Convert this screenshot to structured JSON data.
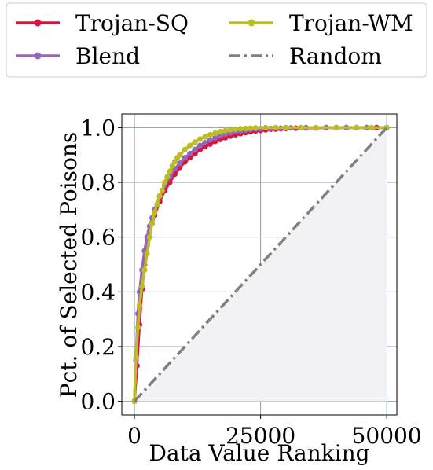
{
  "chart_data": {
    "type": "line",
    "title": "",
    "xlabel": "Data Value Ranking",
    "ylabel": "Pct. of Selected Poisons",
    "xlim": [
      -2500,
      52000
    ],
    "ylim": [
      -0.05,
      1.05
    ],
    "xticks": [
      0,
      25000,
      50000
    ],
    "yticks": [
      0.0,
      0.2,
      0.4,
      0.6,
      0.8,
      1.0
    ],
    "xtick_labels": [
      "0",
      "25000",
      "50000"
    ],
    "ytick_labels": [
      "0.0",
      "0.2",
      "0.4",
      "0.6",
      "0.8",
      "1.0"
    ],
    "grid": true,
    "legend_placement": "top (above plot, 2 columns)",
    "series": [
      {
        "name": "Trojan-SQ",
        "color": "#dc143c",
        "marker": "circle",
        "x": [
          0,
          500,
          1000,
          1500,
          2000,
          2500,
          3000,
          4000,
          5000,
          6000,
          7000,
          8000,
          9000,
          10000,
          11000,
          12000,
          13000,
          14000,
          15000,
          16000,
          17000,
          18000,
          19000,
          20000,
          21000,
          22000,
          23000,
          24000,
          25000,
          26000,
          27000,
          28000,
          29000,
          30000,
          32000,
          34000,
          36000,
          38000,
          40000,
          42000,
          44000,
          46000,
          48000,
          50000
        ],
        "y": [
          0.0,
          0.13,
          0.28,
          0.41,
          0.5,
          0.57,
          0.62,
          0.68,
          0.73,
          0.77,
          0.8,
          0.83,
          0.855,
          0.875,
          0.89,
          0.905,
          0.92,
          0.93,
          0.94,
          0.95,
          0.957,
          0.963,
          0.969,
          0.974,
          0.978,
          0.982,
          0.985,
          0.988,
          0.99,
          0.992,
          0.994,
          0.995,
          0.996,
          0.997,
          0.998,
          0.999,
          0.999,
          1.0,
          1.0,
          1.0,
          1.0,
          1.0,
          1.0,
          1.0
        ]
      },
      {
        "name": "Blend",
        "color": "#9467bd",
        "marker": "circle",
        "x": [
          0,
          300,
          700,
          1000,
          1500,
          2000,
          2500,
          3000,
          3500,
          4000,
          5000,
          6000,
          7000,
          8000,
          9000,
          10000,
          11000,
          12000,
          13000,
          14000,
          15000,
          16000,
          17000,
          18000,
          19000,
          20000,
          21000,
          22000,
          23000,
          24000,
          25000,
          27000,
          29000,
          31000,
          34000,
          38000,
          42000,
          46000,
          50000
        ],
        "y": [
          0.0,
          0.15,
          0.32,
          0.4,
          0.48,
          0.55,
          0.6,
          0.64,
          0.67,
          0.7,
          0.75,
          0.79,
          0.82,
          0.85,
          0.87,
          0.89,
          0.905,
          0.92,
          0.935,
          0.945,
          0.955,
          0.963,
          0.97,
          0.976,
          0.981,
          0.985,
          0.988,
          0.991,
          0.993,
          0.995,
          0.996,
          0.997,
          0.998,
          0.999,
          1.0,
          1.0,
          1.0,
          1.0,
          1.0
        ]
      },
      {
        "name": "Trojan-WM",
        "color": "#bcbd22",
        "marker": "circle",
        "x": [
          0,
          300,
          700,
          1000,
          1500,
          2000,
          2500,
          3000,
          3500,
          4000,
          4500,
          5000,
          5500,
          6000,
          6500,
          7000,
          7500,
          8000,
          8500,
          9000,
          10000,
          11000,
          12000,
          13000,
          14000,
          15000,
          16000,
          17000,
          18000,
          19000,
          20000,
          21000,
          22000,
          23000,
          24000,
          26000,
          28000,
          30000,
          33000,
          36000,
          40000,
          44000,
          47000,
          50000
        ],
        "y": [
          0.0,
          0.16,
          0.27,
          0.35,
          0.42,
          0.48,
          0.54,
          0.6,
          0.65,
          0.69,
          0.72,
          0.75,
          0.77,
          0.8,
          0.82,
          0.84,
          0.86,
          0.875,
          0.89,
          0.9,
          0.92,
          0.935,
          0.947,
          0.958,
          0.967,
          0.974,
          0.98,
          0.985,
          0.989,
          0.992,
          0.994,
          0.996,
          0.997,
          0.998,
          0.999,
          1.0,
          1.0,
          1.0,
          1.0,
          1.0,
          1.0,
          1.0,
          1.0,
          1.0
        ]
      },
      {
        "name": "Random",
        "color": "#808080",
        "marker": "none",
        "dash": "dashdot",
        "x": [
          0,
          50000
        ],
        "y": [
          0.0,
          1.0
        ]
      }
    ]
  }
}
